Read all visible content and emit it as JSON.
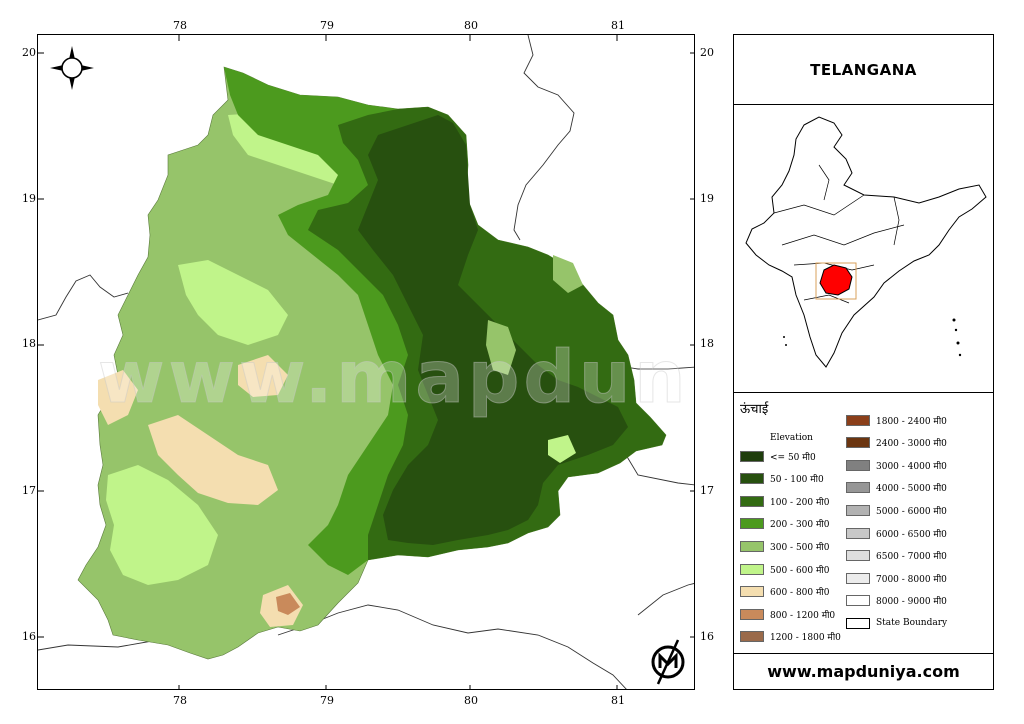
{
  "title": "TELANGANA",
  "website": "www.mapduniya.com",
  "watermark": "www.mapduniya.com",
  "axes": {
    "top": [
      "78",
      "79",
      "80",
      "81"
    ],
    "bottom": [
      "78",
      "79",
      "80",
      "81"
    ],
    "left": [
      "20",
      "19",
      "18",
      "17",
      "16"
    ],
    "right": [
      "20",
      "19",
      "18",
      "17",
      "16"
    ]
  },
  "legend": {
    "title": "ऊंचाई",
    "subtitle": "Elevation",
    "items": [
      {
        "label": "<= 50 मी0",
        "color": "#1f3d0c"
      },
      {
        "label": "50 - 100 मी0",
        "color": "#27500f"
      },
      {
        "label": "100 - 200 मी0",
        "color": "#336b12"
      },
      {
        "label": "200 - 300 मी0",
        "color": "#4c9a1e"
      },
      {
        "label": "300 - 500 मी0",
        "color": "#96c46a"
      },
      {
        "label": "500 - 600 मी0",
        "color": "#c0f48a"
      },
      {
        "label": "600 - 800 मी0",
        "color": "#f4deb0"
      },
      {
        "label": "800 - 1200 मी0",
        "color": "#c98a5b"
      },
      {
        "label": "1200 - 1800 मी0",
        "color": "#9a6a4a"
      },
      {
        "label": "1800 - 2400 मी0",
        "color": "#8b3f1a"
      },
      {
        "label": "2400 - 3000 मी0",
        "color": "#6b3510"
      },
      {
        "label": "3000 - 4000 मी0",
        "color": "#808080"
      },
      {
        "label": "4000 - 5000 मी0",
        "color": "#969696"
      },
      {
        "label": "5000 - 6000 मी0",
        "color": "#b2b2b2"
      },
      {
        "label": "6000 - 6500 मी0",
        "color": "#c8c8c8"
      },
      {
        "label": "6500 - 7000 मी0",
        "color": "#dedede"
      },
      {
        "label": "7000 - 8000 मी0",
        "color": "#ececec"
      },
      {
        "label": "8000 - 9000 मी0",
        "color": "#ffffff"
      },
      {
        "label": "State Boundary",
        "color": "#ffffff"
      }
    ]
  },
  "colors": {
    "highlight_state": "#ff0000",
    "inset_box": "#d9a05b"
  }
}
